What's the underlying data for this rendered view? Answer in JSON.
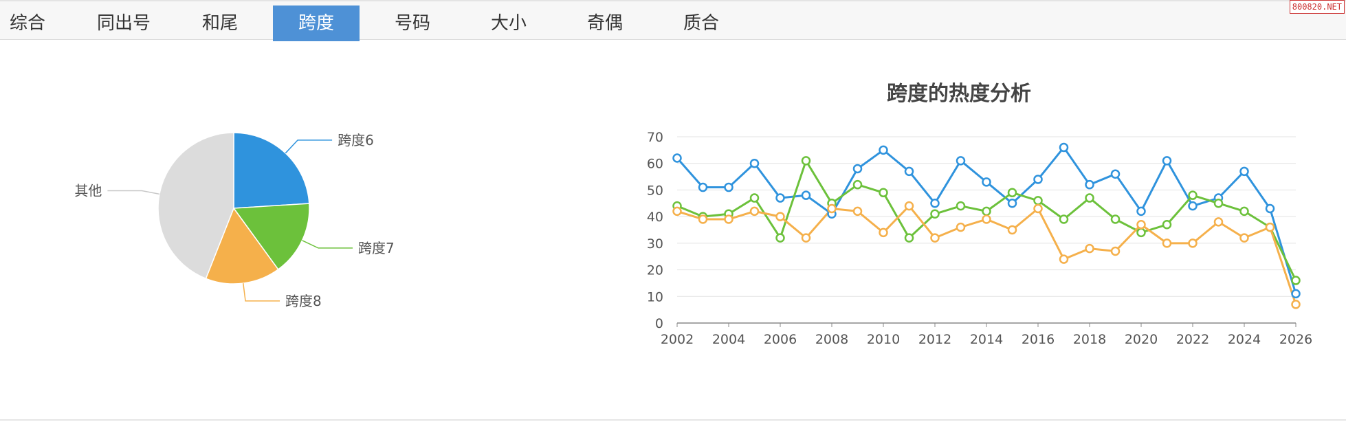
{
  "tabs": [
    {
      "label": "综合",
      "active": false
    },
    {
      "label": "同出号",
      "active": false
    },
    {
      "label": "和尾",
      "active": false
    },
    {
      "label": "跨度",
      "active": true
    },
    {
      "label": "号码",
      "active": false
    },
    {
      "label": "大小",
      "active": false
    },
    {
      "label": "奇偶",
      "active": false
    },
    {
      "label": "质合",
      "active": false
    }
  ],
  "watermark": "800820.NET",
  "colors": {
    "blue": "#2f93dd",
    "green": "#6cc13b",
    "orange": "#f5b04b",
    "gray": "#dcdcdc",
    "tab_active": "#4e91d6"
  },
  "chart_data": [
    {
      "type": "pie",
      "slices": [
        {
          "label": "跨度6",
          "value": 24,
          "color": "#2f93dd"
        },
        {
          "label": "跨度7",
          "value": 16,
          "color": "#6cc13b"
        },
        {
          "label": "跨度8",
          "value": 16,
          "color": "#f5b04b"
        },
        {
          "label": "其他",
          "value": 44,
          "color": "#dcdcdc"
        }
      ]
    },
    {
      "type": "line",
      "title": "跨度的热度分析",
      "x": [
        2002,
        2003,
        2004,
        2005,
        2006,
        2007,
        2008,
        2009,
        2010,
        2011,
        2012,
        2013,
        2014,
        2015,
        2016,
        2017,
        2018,
        2019,
        2020,
        2021,
        2022,
        2023,
        2024,
        2025,
        2026
      ],
      "x_ticks": [
        2002,
        2004,
        2006,
        2008,
        2010,
        2012,
        2014,
        2016,
        2018,
        2020,
        2022,
        2024,
        2026
      ],
      "ylim": [
        0,
        70
      ],
      "y_ticks": [
        0,
        10,
        20,
        30,
        40,
        50,
        60,
        70
      ],
      "grid": true,
      "series": [
        {
          "color": "#2f93dd",
          "values": [
            62,
            51,
            51,
            60,
            47,
            48,
            41,
            58,
            65,
            57,
            45,
            61,
            53,
            45,
            54,
            66,
            52,
            56,
            42,
            61,
            44,
            47,
            57,
            43,
            11
          ]
        },
        {
          "color": "#6cc13b",
          "values": [
            44,
            40,
            41,
            47,
            32,
            61,
            45,
            52,
            49,
            32,
            41,
            44,
            42,
            49,
            46,
            39,
            47,
            39,
            34,
            37,
            48,
            45,
            42,
            36,
            16
          ]
        },
        {
          "color": "#f5b04b",
          "values": [
            42,
            39,
            39,
            42,
            40,
            32,
            43,
            42,
            34,
            44,
            32,
            36,
            39,
            35,
            43,
            24,
            28,
            27,
            37,
            30,
            30,
            38,
            32,
            36,
            7
          ]
        }
      ]
    }
  ]
}
